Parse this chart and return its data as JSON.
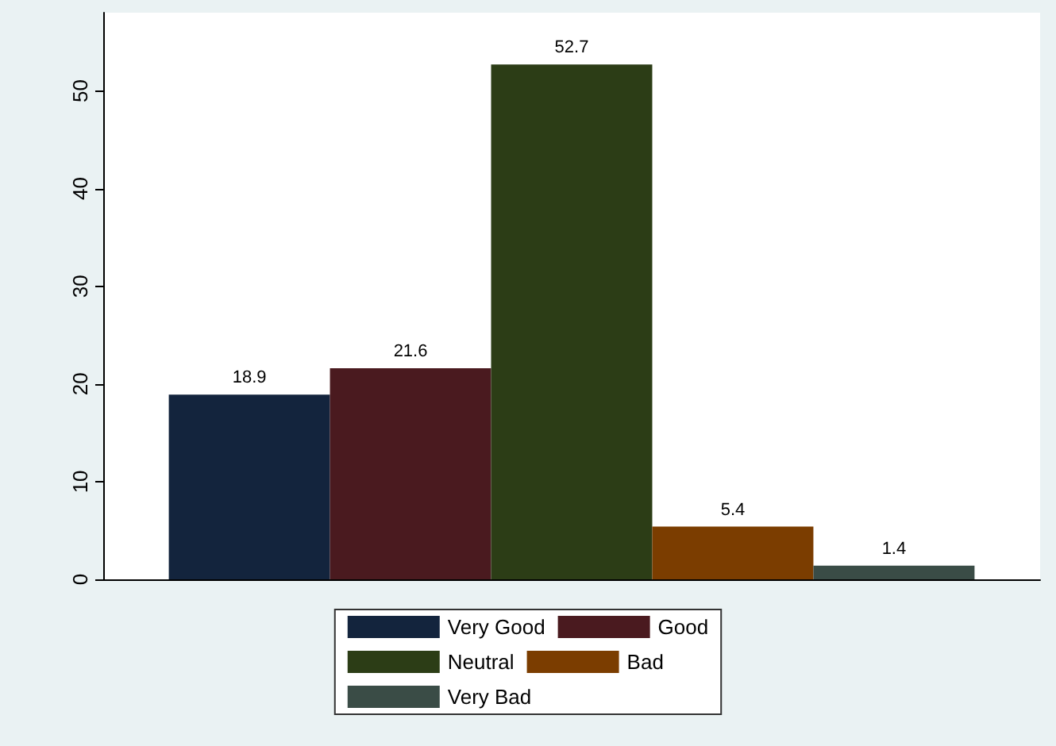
{
  "chart_data": {
    "type": "bar",
    "categories": [
      null
    ],
    "series": [
      {
        "name": "Very Good",
        "color": "#13243d",
        "values": [
          18.9
        ]
      },
      {
        "name": "Good",
        "color": "#4a1a1f",
        "values": [
          21.6
        ]
      },
      {
        "name": "Neutral",
        "color": "#2c3d16",
        "values": [
          52.7
        ]
      },
      {
        "name": "Bad",
        "color": "#7b3d00",
        "values": [
          5.4
        ]
      },
      {
        "name": "Very Bad",
        "color": "#3a4c46",
        "values": [
          1.4
        ]
      }
    ],
    "ylim": [
      0,
      58
    ],
    "yticks": [
      0,
      10,
      20,
      30,
      40,
      50
    ],
    "data_labels": true,
    "grid": false,
    "legend": "bottom"
  }
}
